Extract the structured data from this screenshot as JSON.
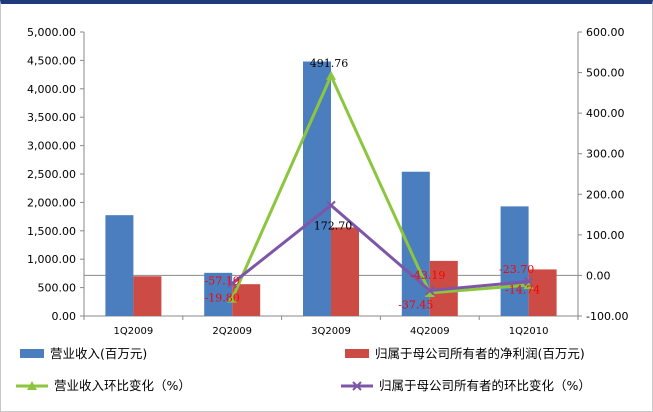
{
  "chart_data": {
    "type": "bar",
    "categories": [
      "1Q2009",
      "2Q2009",
      "3Q2009",
      "4Q2009",
      "1Q2010"
    ],
    "left_axis": {
      "ylim": [
        0,
        5000
      ],
      "ticks": [
        "0.00",
        "500.00",
        "1,000.00",
        "1,500.00",
        "2,000.00",
        "2,500.00",
        "3,000.00",
        "3,500.00",
        "4,000.00",
        "4,500.00",
        "5,000.00"
      ]
    },
    "right_axis": {
      "ylim": [
        -100,
        600
      ],
      "ticks": [
        "-100.00",
        "0.00",
        "100.00",
        "200.00",
        "300.00",
        "400.00",
        "500.00",
        "600.00"
      ]
    },
    "grid": false,
    "legend_position": "bottom",
    "series": [
      {
        "name": "营业收入(百万元)",
        "kind": "bar",
        "axis": "left",
        "color": "#4a7ebf",
        "values": [
          1775,
          760,
          4480,
          2540,
          1930
        ]
      },
      {
        "name": "归属于母公司所有者的净利润(百万元)",
        "kind": "bar",
        "axis": "left",
        "color": "#cd4b45",
        "values": [
          700,
          560,
          1560,
          970,
          820
        ]
      },
      {
        "name": "营业收入环比变化（%）",
        "kind": "line",
        "axis": "right",
        "color": "#8cc63f",
        "marker": "triangle",
        "values": [
          null,
          -57.19,
          491.76,
          -43.19,
          -23.7
        ],
        "labels": [
          "",
          "-57.19",
          "491.76",
          "-43.19",
          "-23.70"
        ],
        "label_color": "#ff0000"
      },
      {
        "name": "归属于母公司所有者的环比变化（%）",
        "kind": "line",
        "axis": "right",
        "color": "#7d56a8",
        "marker": "x",
        "values": [
          null,
          -19.8,
          172.7,
          -37.45,
          -14.74
        ],
        "labels": [
          "",
          "-19.80",
          "172.70",
          "-37.45",
          "-14.74"
        ],
        "label_color": "#ff0000"
      }
    ]
  }
}
